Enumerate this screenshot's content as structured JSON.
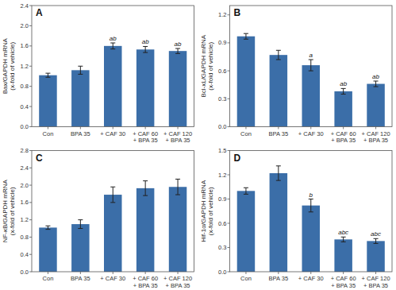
{
  "chart_data": [
    {
      "type": "bar",
      "title": "A",
      "ylabel": "Bax/GAPDH mRNA\n(x-fold of vehicle)",
      "categories": [
        "Con",
        "BPA 35",
        "+ CAF 30",
        "+ CAF 60\n+ BPA 35",
        "+ CAF 120\n+ BPA 35"
      ],
      "values": [
        1.02,
        1.12,
        1.6,
        1.53,
        1.5
      ],
      "errors": [
        0.04,
        0.08,
        0.06,
        0.06,
        0.05
      ],
      "annotations": [
        {
          "index": 2,
          "text": "ab"
        },
        {
          "index": 3,
          "text": "ab"
        },
        {
          "index": 4,
          "text": "ab"
        }
      ],
      "ylim": [
        0.0,
        2.4
      ],
      "yticks": [
        {
          "value": 0.0,
          "label": "0.0"
        },
        0.4,
        0.8,
        1.2,
        1.6,
        {
          "value": 2.0,
          "label": "2.0"
        },
        2.4
      ],
      "grid": false
    },
    {
      "type": "bar",
      "title": "B",
      "ylabel": "Bcl-xL/GAPDH mRNA\n(x-fold of vehicle)",
      "categories": [
        "Con",
        "BPA 35",
        "+ CAF 30",
        "+ CAF 60\n+ BPA 35",
        "+ CAF 120\n+ BPA 35"
      ],
      "values": [
        0.97,
        0.77,
        0.66,
        0.38,
        0.46
      ],
      "errors": [
        0.03,
        0.05,
        0.06,
        0.03,
        0.03
      ],
      "annotations": [
        {
          "index": 2,
          "text": "a"
        },
        {
          "index": 3,
          "text": "ab"
        },
        {
          "index": 4,
          "text": "ab"
        }
      ],
      "ylim": [
        0.0,
        1.3
      ],
      "yticks": [
        {
          "value": 0.0,
          "label": "0.0"
        },
        0.3,
        0.6,
        0.9,
        1.2
      ],
      "grid": false
    },
    {
      "type": "bar",
      "title": "C",
      "ylabel": "NF-κB/GAPDH mRNA\n(x-fold of vehicle)",
      "categories": [
        "Con",
        "BPA 35",
        "+ CAF 30",
        "+ CAF 60\n+ BPA 35",
        "+ CAF 120\n+ BPA 35"
      ],
      "values": [
        1.02,
        1.1,
        1.78,
        1.93,
        1.96
      ],
      "errors": [
        0.04,
        0.1,
        0.18,
        0.17,
        0.18
      ],
      "ylim": [
        0.0,
        2.8
      ],
      "yticks": [
        {
          "value": 0.0,
          "label": "0.0"
        },
        0.4,
        0.8,
        1.2,
        1.6,
        {
          "value": 2.0,
          "label": "2.0"
        },
        2.4,
        2.8
      ],
      "grid": false
    },
    {
      "type": "bar",
      "title": "D",
      "ylabel": "Hif-1α/GAPDH mRNA\n(x-fold of vehicle)",
      "categories": [
        "Con",
        "BPA 35",
        "+ CAF 30",
        "+ CAF 60\n+ BPA 35",
        "+ CAF 120\n+ BPA 35"
      ],
      "values": [
        1.0,
        1.22,
        0.82,
        0.4,
        0.38
      ],
      "errors": [
        0.04,
        0.09,
        0.08,
        0.03,
        0.03
      ],
      "annotations": [
        {
          "index": 2,
          "text": "b"
        },
        {
          "index": 3,
          "text": "abc"
        },
        {
          "index": 4,
          "text": "abc"
        }
      ],
      "ylim": [
        0.0,
        1.5
      ],
      "yticks": [
        {
          "value": 0.0,
          "label": "0.0"
        },
        0.3,
        0.6,
        0.9,
        1.2,
        1.5
      ],
      "grid": false
    }
  ]
}
